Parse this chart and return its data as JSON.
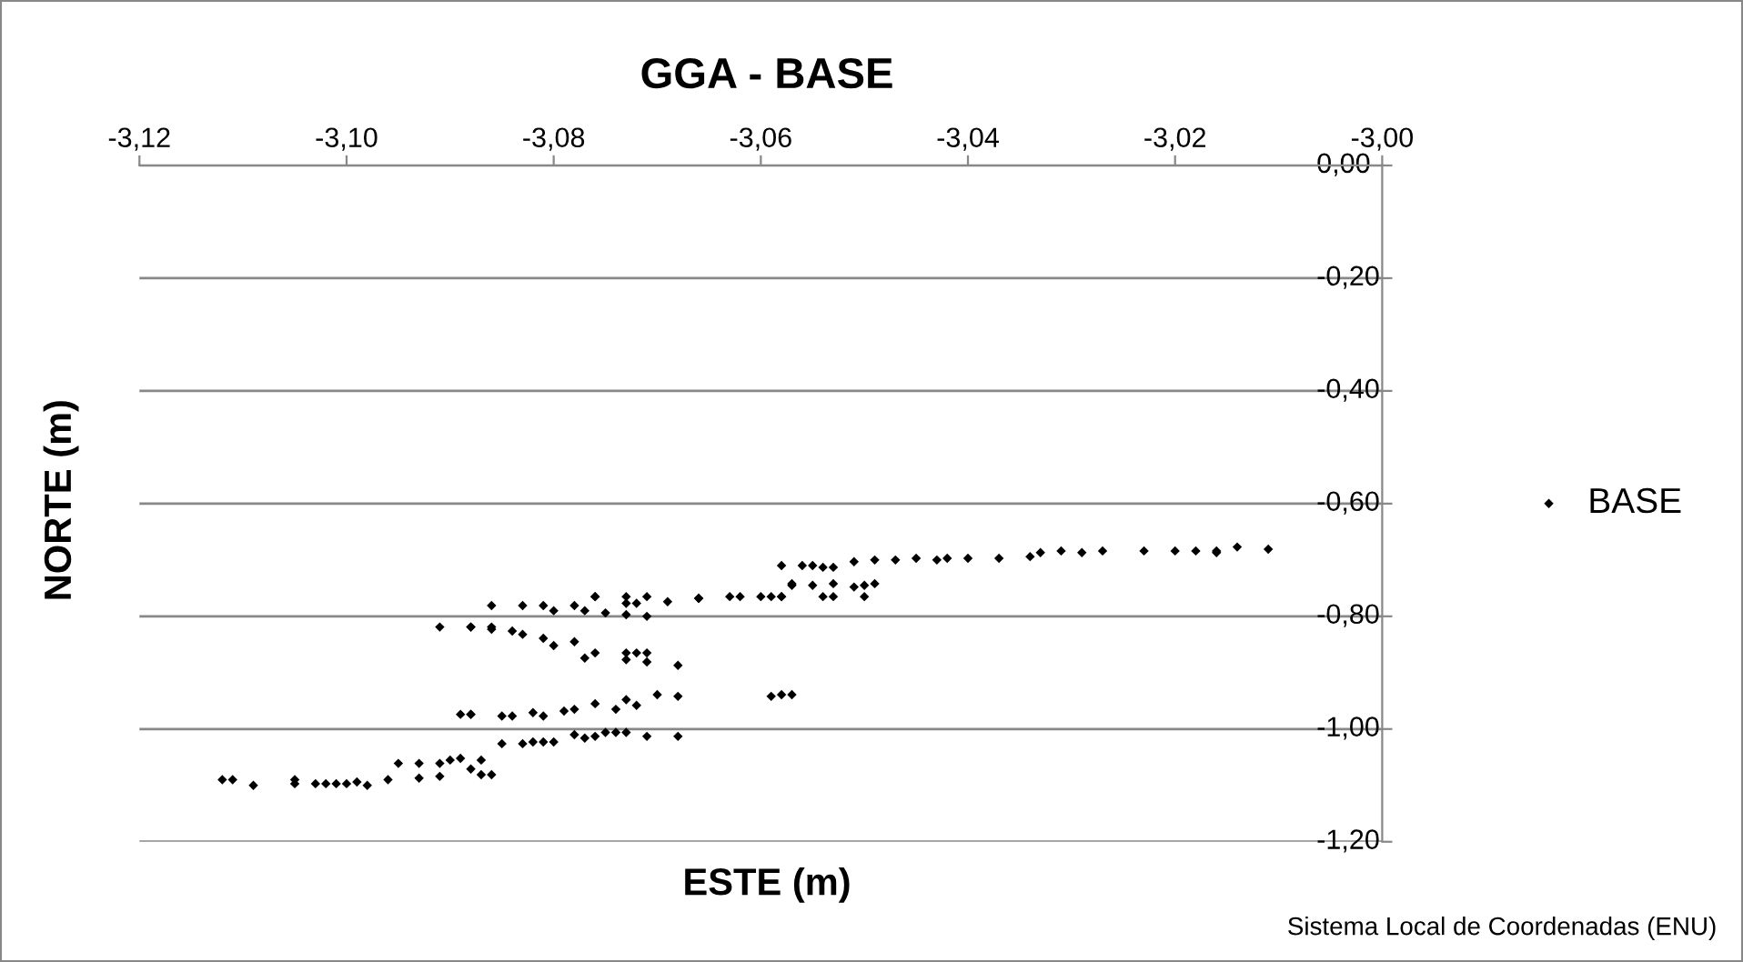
{
  "chart_data": {
    "type": "scatter",
    "title": "GGA - BASE",
    "xlabel": "ESTE (m)",
    "ylabel": "NORTE (m)",
    "annotations": [
      "Sistema Local de Coordenadas (ENU)"
    ],
    "xlim": [
      -3.12,
      -3.0
    ],
    "ylim": [
      -1.2,
      0
    ],
    "xticks": [
      {
        "value": -3.12,
        "label": "-3,12"
      },
      {
        "value": -3.1,
        "label": "-3,10"
      },
      {
        "value": -3.08,
        "label": "-3,08"
      },
      {
        "value": -3.06,
        "label": "-3,06"
      },
      {
        "value": -3.04,
        "label": "-3,04"
      },
      {
        "value": -3.02,
        "label": "-3,02"
      },
      {
        "value": -3.0,
        "label": "-3,00"
      }
    ],
    "yticks": [
      {
        "value": 0,
        "label": "0,00"
      },
      {
        "value": -0.2,
        "label": "-0,20"
      },
      {
        "value": -0.4,
        "label": "-0,40"
      },
      {
        "value": -0.6,
        "label": "-0,60"
      },
      {
        "value": -0.8,
        "label": "-0,80"
      },
      {
        "value": -1.0,
        "label": "-1,00"
      },
      {
        "value": -1.2,
        "label": "-1,20"
      }
    ],
    "grid": "y",
    "legend": "right",
    "marker": "diamond",
    "series": [
      {
        "name": "BASE",
        "color": "#000000",
        "x": [
          -3.091,
          -3.088,
          -3.086,
          -3.089,
          -3.088,
          -3.112,
          -3.111,
          -3.109,
          -3.105,
          -3.105,
          -3.103,
          -3.102,
          -3.101,
          -3.1,
          -3.099,
          -3.098,
          -3.096,
          -3.095,
          -3.093,
          -3.091,
          -3.09,
          -3.089,
          -3.093,
          -3.091,
          -3.088,
          -3.087,
          -3.087,
          -3.086,
          -3.086,
          -3.083,
          -3.081,
          -3.08,
          -3.078,
          -3.077,
          -3.076,
          -3.076,
          -3.075,
          -3.073,
          -3.073,
          -3.072,
          -3.071,
          -3.069,
          -3.066,
          -3.063,
          -3.059,
          -3.058,
          -3.057,
          -3.088,
          -3.086,
          -3.084,
          -3.083,
          -3.081,
          -3.08,
          -3.078,
          -3.076,
          -3.077,
          -3.073,
          -3.072,
          -3.071,
          -3.073,
          -3.071,
          -3.068,
          -3.073,
          -3.071,
          -3.088,
          -3.085,
          -3.084,
          -3.082,
          -3.081,
          -3.079,
          -3.078,
          -3.076,
          -3.074,
          -3.073,
          -3.072,
          -3.07,
          -3.068,
          -3.059,
          -3.058,
          -3.057,
          -3.085,
          -3.083,
          -3.082,
          -3.081,
          -3.08,
          -3.078,
          -3.077,
          -3.076,
          -3.075,
          -3.074,
          -3.073,
          -3.071,
          -3.068,
          -3.058,
          -3.056,
          -3.055,
          -3.054,
          -3.053,
          -3.051,
          -3.049,
          -3.047,
          -3.045,
          -3.043,
          -3.042,
          -3.04,
          -3.037,
          -3.034,
          -3.066,
          -3.062,
          -3.06,
          -3.058,
          -3.057,
          -3.055,
          -3.053,
          -3.054,
          -3.053,
          -3.051,
          -3.05,
          -3.05,
          -3.049,
          -3.033,
          -3.031,
          -3.029,
          -3.027,
          -3.023,
          -3.02,
          -3.018,
          -3.016,
          -3.016,
          -3.014,
          -3.011
        ],
        "values": [
          -0.819,
          -0.819,
          -0.819,
          -0.974,
          -0.974,
          -1.09,
          -1.09,
          -1.1,
          -1.09,
          -1.097,
          -1.097,
          -1.097,
          -1.097,
          -1.097,
          -1.094,
          -1.1,
          -1.09,
          -1.061,
          -1.061,
          -1.061,
          -1.055,
          -1.052,
          -1.087,
          -1.084,
          -1.071,
          -1.081,
          -1.055,
          -1.081,
          -0.781,
          -0.781,
          -0.781,
          -0.79,
          -0.781,
          -0.79,
          -0.765,
          -0.765,
          -0.794,
          -0.777,
          -0.765,
          -0.777,
          -0.765,
          -0.774,
          -0.768,
          -0.765,
          -0.765,
          -0.765,
          -0.745,
          -0.819,
          -0.823,
          -0.826,
          -0.832,
          -0.839,
          -0.852,
          -0.845,
          -0.865,
          -0.874,
          -0.865,
          -0.865,
          -0.865,
          -0.877,
          -0.881,
          -0.887,
          -0.797,
          -0.8,
          -0.974,
          -0.977,
          -0.977,
          -0.971,
          -0.977,
          -0.968,
          -0.965,
          -0.955,
          -0.965,
          -0.948,
          -0.958,
          -0.939,
          -0.942,
          -0.942,
          -0.939,
          -0.939,
          -1.026,
          -1.026,
          -1.023,
          -1.023,
          -1.023,
          -1.01,
          -1.016,
          -1.013,
          -1.006,
          -1.006,
          -1.006,
          -1.013,
          -1.013,
          -0.71,
          -0.71,
          -0.71,
          -0.713,
          -0.713,
          -0.703,
          -0.7,
          -0.7,
          -0.697,
          -0.7,
          -0.697,
          -0.697,
          -0.697,
          -0.694,
          -0.768,
          -0.765,
          -0.765,
          -0.765,
          -0.742,
          -0.745,
          -0.742,
          -0.765,
          -0.765,
          -0.748,
          -0.745,
          -0.765,
          -0.742,
          -0.687,
          -0.684,
          -0.687,
          -0.684,
          -0.684,
          -0.684,
          -0.684,
          -0.684,
          -0.687,
          -0.677,
          -0.681
        ]
      }
    ]
  }
}
